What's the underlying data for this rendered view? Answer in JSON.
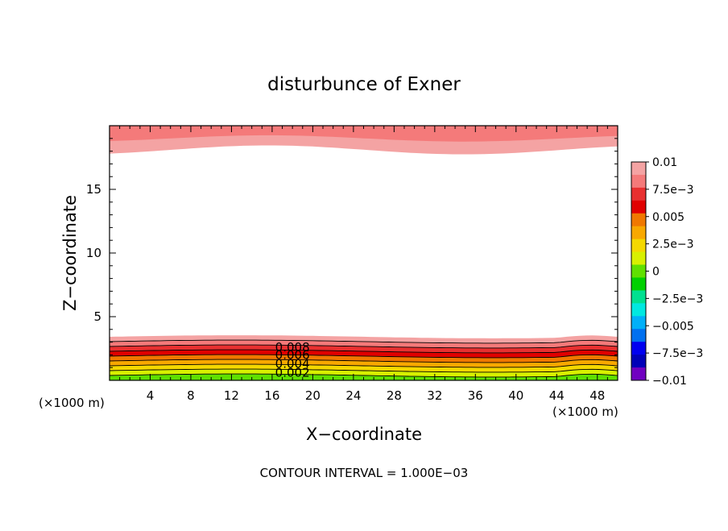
{
  "chart_data": {
    "type": "contour",
    "title": "disturbunce of Exner",
    "xlabel": "X−coordinate",
    "ylabel": "Z−coordinate",
    "x_unit": "(×1000 m)",
    "z_unit": "(×1000 m)",
    "xlim": [
      0,
      50
    ],
    "ylim": [
      0,
      20
    ],
    "x_ticks": [
      4,
      8,
      12,
      16,
      20,
      24,
      28,
      32,
      36,
      40,
      44,
      48
    ],
    "y_ticks": [
      5,
      10,
      15
    ],
    "contour_interval_text": "CONTOUR INTERVAL = 1.000E−03",
    "contour_labels": [
      {
        "text": "0.008",
        "x": 18,
        "z": 2.6
      },
      {
        "text": "0.006",
        "x": 18,
        "z": 2.0
      },
      {
        "text": "0.004",
        "x": 18,
        "z": 1.3
      },
      {
        "text": "0.002",
        "x": 18,
        "z": 0.6
      }
    ],
    "colorbar": {
      "range": [
        -0.01,
        0.01
      ],
      "tick_labels": [
        "0.01",
        "7.5e−3",
        "0.005",
        "2.5e−3",
        "0",
        "−2.5e−3",
        "−0.005",
        "−7.5e−3",
        "−0.01"
      ],
      "colors": [
        "#f4a3a3",
        "#f47a7a",
        "#e83030",
        "#e00000",
        "#f07800",
        "#f8a800",
        "#f4d800",
        "#d8f000",
        "#60e000",
        "#00d000",
        "#00e090",
        "#00e8e0",
        "#00b0f8",
        "#0070f0",
        "#0000f0",
        "#0000b8",
        "#7000c0"
      ]
    }
  }
}
